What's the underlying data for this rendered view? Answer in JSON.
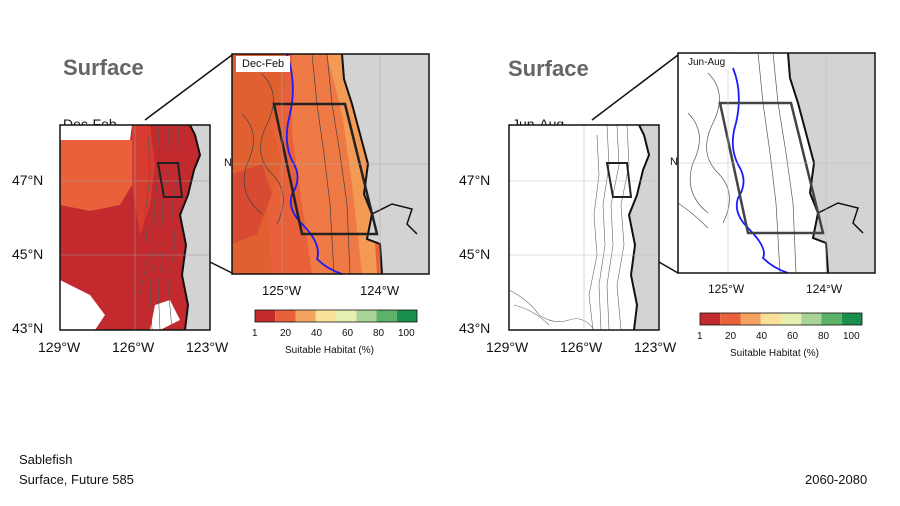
{
  "left_panel": {
    "title": "Surface",
    "main_map_label": "Dec-Feb",
    "inset_label": "Dec-Feb",
    "lat_ticks": [
      "47°N",
      "45°N",
      "43°N"
    ],
    "lon_ticks": [
      "129°W",
      "126°W",
      "123°W"
    ],
    "inset_lon_ticks": [
      "125°W",
      "124°W"
    ],
    "inset_lat_tick_fragment": "N"
  },
  "right_panel": {
    "title": "Surface",
    "main_map_label": "Jun-Aug",
    "inset_label": "Jun-Aug",
    "lat_ticks": [
      "47°N",
      "45°N",
      "43°N"
    ],
    "lon_ticks": [
      "129°W",
      "126°W",
      "123°W"
    ],
    "inset_lon_ticks": [
      "125°W",
      "124°W"
    ],
    "inset_lat_tick_fragment": "N"
  },
  "colorbar": {
    "tick_labels": [
      "1",
      "20",
      "40",
      "60",
      "80",
      "100"
    ],
    "label": "Suitable Habitat (%)",
    "colors": [
      "#c22a2e",
      "#e8613a",
      "#f4a460",
      "#fbe09a",
      "#e6efb0",
      "#a8d597",
      "#5cb368",
      "#1a8f4c"
    ]
  },
  "footer": {
    "species": "Sablefish",
    "scenario": "Surface, Future 585",
    "period": "2060-2080"
  },
  "colors": {
    "land": "#d3d3d3",
    "habitat_dark": "#c22a2e",
    "habitat_mid": "#d83c30",
    "habitat_light": "#e8613a",
    "habitat_pale": "#f07a45",
    "current_line": "#1a1aff",
    "title_gray": "#666666"
  }
}
